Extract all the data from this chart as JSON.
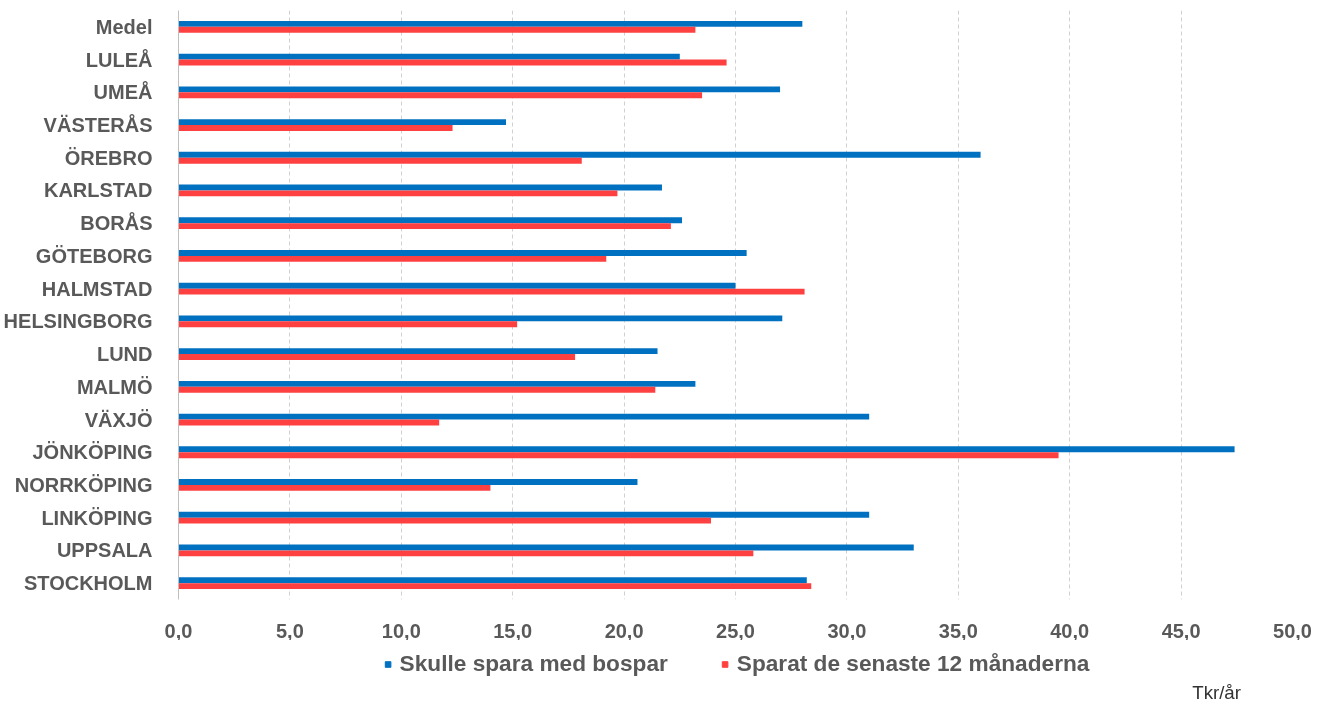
{
  "chart_data": {
    "type": "bar",
    "orientation": "horizontal",
    "categories": [
      "Medel",
      "LULEÅ",
      "UMEÅ",
      "VÄSTERÅS",
      "ÖREBRO",
      "KARLSTAD",
      "BORÅS",
      "GÖTEBORG",
      "HALMSTAD",
      "HELSINGBORG",
      "LUND",
      "MALMÖ",
      "VÄXJÖ",
      "JÖNKÖPING",
      "NORRKÖPING",
      "LINKÖPING",
      "UPPSALA",
      "STOCKHOLM"
    ],
    "series": [
      {
        "name": "Skulle spara med bospar",
        "color": "#0070c0",
        "values": [
          28.0,
          22.5,
          27.0,
          14.7,
          36.0,
          21.7,
          22.6,
          25.5,
          25.0,
          27.1,
          21.5,
          23.2,
          31.0,
          47.4,
          20.6,
          31.0,
          33.0,
          28.2
        ]
      },
      {
        "name": "Sparat de senaste 12 månaderna",
        "color": "#ff4040",
        "values": [
          23.2,
          24.6,
          23.5,
          12.3,
          18.1,
          19.7,
          22.1,
          19.2,
          28.1,
          15.2,
          17.8,
          21.4,
          11.7,
          39.5,
          14.0,
          23.9,
          25.8,
          28.4
        ]
      }
    ],
    "xlim": [
      0,
      50
    ],
    "xticks": [
      {
        "value": 0,
        "label": "0,0"
      },
      {
        "value": 5,
        "label": "5,0"
      },
      {
        "value": 10,
        "label": "10,0"
      },
      {
        "value": 15,
        "label": "15,0"
      },
      {
        "value": 20,
        "label": "20,0"
      },
      {
        "value": 25,
        "label": "25,0"
      },
      {
        "value": 30,
        "label": "30,0"
      },
      {
        "value": 35,
        "label": "35,0"
      },
      {
        "value": 40,
        "label": "40,0"
      },
      {
        "value": 45,
        "label": "45,0"
      },
      {
        "value": 50,
        "label": "50,0"
      }
    ],
    "grid": "x",
    "legend": "bottom",
    "annotations": [
      "Tkr/år"
    ]
  }
}
